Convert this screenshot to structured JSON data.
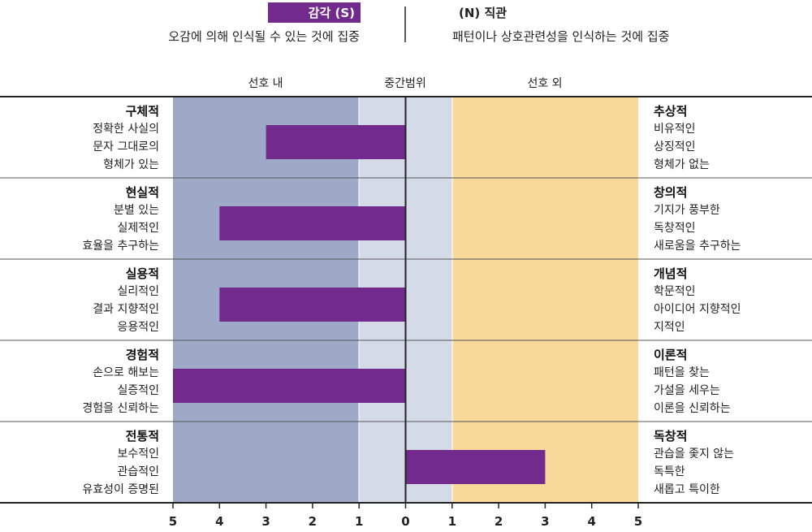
{
  "header": {
    "left_badge": "감각 (S)",
    "left_desc": "오감에 의해 인식될 수 있는 것에 집중",
    "right_badge": "(N) 직관",
    "right_desc": "패턴이나 상호관련성을 인식하는 것에 집중"
  },
  "zones": {
    "left": "선호 내",
    "middle": "중간범위",
    "right": "선호 외"
  },
  "colors": {
    "bar": "#722a8c",
    "left_zone": "#9ea9c8",
    "middle_zone": "#d5dae9",
    "right_zone": "#f8d99a",
    "line": "#222222"
  },
  "chart_data": {
    "type": "bar",
    "orientation": "horizontal-diverging",
    "x_ticks": [
      "5",
      "4",
      "3",
      "2",
      "1",
      "0",
      "1",
      "2",
      "3",
      "4",
      "5"
    ],
    "xlim": [
      -5,
      5
    ],
    "categories": [
      {
        "left_title": "구체적",
        "left_lines": [
          "정확한 사실의",
          "문자 그대로의",
          "형체가 있는"
        ],
        "right_title": "추상적",
        "right_lines": [
          "비유적인",
          "상징적인",
          "형체가 없는"
        ],
        "value": -3
      },
      {
        "left_title": "현실적",
        "left_lines": [
          "분별 있는",
          "실제적인",
          "효율을 추구하는"
        ],
        "right_title": "창의적",
        "right_lines": [
          "기지가 풍부한",
          "독창적인",
          "새로움을 추구하는"
        ],
        "value": -4
      },
      {
        "left_title": "실용적",
        "left_lines": [
          "실리적인",
          "결과 지향적인",
          "응용적인"
        ],
        "right_title": "개념적",
        "right_lines": [
          "학문적인",
          "아이디어 지향적인",
          "지적인"
        ],
        "value": -4
      },
      {
        "left_title": "경험적",
        "left_lines": [
          "손으로 해보는",
          "실증적인",
          "경험을 신뢰하는"
        ],
        "right_title": "이론적",
        "right_lines": [
          "패턴을 찾는",
          "가설을 세우는",
          "이론을 신뢰하는"
        ],
        "value": -5
      },
      {
        "left_title": "전통적",
        "left_lines": [
          "보수적인",
          "관습적인",
          "유효성이 증명된"
        ],
        "right_title": "독창적",
        "right_lines": [
          "관습을 좇지 않는",
          "독특한",
          "새롭고 특이한"
        ],
        "value": 3
      }
    ]
  }
}
